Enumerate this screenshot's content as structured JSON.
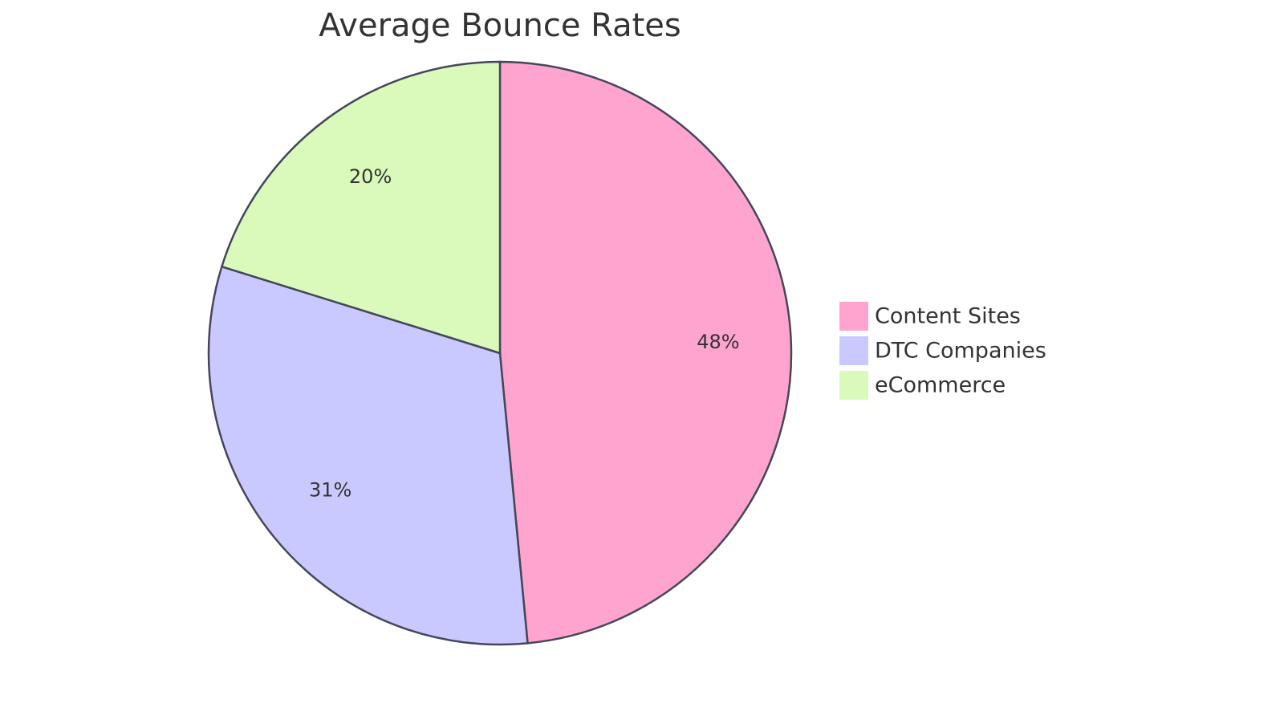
{
  "chart_data": {
    "type": "pie",
    "title": "Average Bounce Rates",
    "categories": [
      "Content Sites",
      "DTC Companies",
      "eCommerce"
    ],
    "values": [
      48,
      31,
      20
    ],
    "value_labels": [
      "48%",
      "31%",
      "20%"
    ],
    "colors": [
      "#ffa3cf",
      "#c9c9ff",
      "#dafabb"
    ],
    "legend": "right"
  }
}
